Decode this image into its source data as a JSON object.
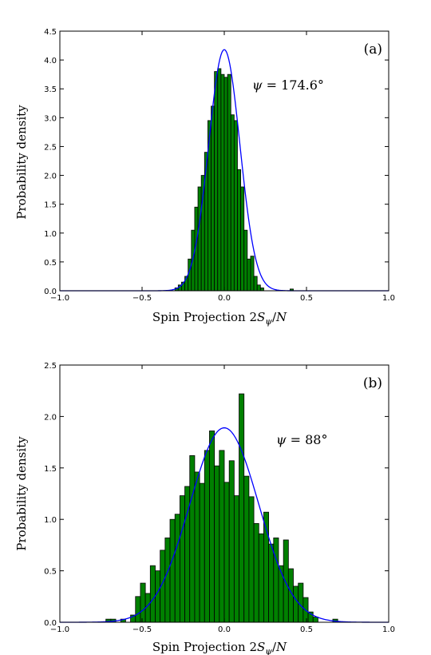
{
  "chart_data": [
    {
      "type": "bar",
      "panel_label": "(a)",
      "annotation": "ψ = 174.6°",
      "xlabel": "Spin Projection 2S_ψ/N",
      "ylabel": "Probability density",
      "xlim": [
        -1.0,
        1.0
      ],
      "ylim": [
        0,
        4.5
      ],
      "xticks": [
        "−1.0",
        "−0.5",
        "0.0",
        "0.5",
        "1.0"
      ],
      "yticks": [
        "0.0",
        "0.5",
        "1.0",
        "1.5",
        "2.0",
        "2.5",
        "3.0",
        "3.5",
        "4.0",
        "4.5"
      ],
      "bin_width": 0.02,
      "bins": [
        {
          "x0": -0.3,
          "h": 0.05
        },
        {
          "x0": -0.28,
          "h": 0.1
        },
        {
          "x0": -0.26,
          "h": 0.15
        },
        {
          "x0": -0.24,
          "h": 0.25
        },
        {
          "x0": -0.22,
          "h": 0.55
        },
        {
          "x0": -0.2,
          "h": 1.05
        },
        {
          "x0": -0.18,
          "h": 1.45
        },
        {
          "x0": -0.16,
          "h": 1.8
        },
        {
          "x0": -0.14,
          "h": 2.0
        },
        {
          "x0": -0.12,
          "h": 2.4
        },
        {
          "x0": -0.1,
          "h": 2.95
        },
        {
          "x0": -0.08,
          "h": 3.2
        },
        {
          "x0": -0.06,
          "h": 3.8
        },
        {
          "x0": -0.04,
          "h": 3.85
        },
        {
          "x0": -0.02,
          "h": 3.75
        },
        {
          "x0": 0.0,
          "h": 3.7
        },
        {
          "x0": 0.02,
          "h": 3.75
        },
        {
          "x0": 0.04,
          "h": 3.05
        },
        {
          "x0": 0.06,
          "h": 2.95
        },
        {
          "x0": 0.08,
          "h": 2.1
        },
        {
          "x0": 0.1,
          "h": 1.8
        },
        {
          "x0": 0.12,
          "h": 1.05
        },
        {
          "x0": 0.14,
          "h": 0.55
        },
        {
          "x0": 0.16,
          "h": 0.6
        },
        {
          "x0": 0.18,
          "h": 0.25
        },
        {
          "x0": 0.2,
          "h": 0.1
        },
        {
          "x0": 0.22,
          "h": 0.05
        },
        {
          "x0": 0.4,
          "h": 0.03
        }
      ],
      "fit": {
        "type": "gaussian",
        "mean": 0.0,
        "sigma": 0.095,
        "peak": 4.18
      },
      "bar_color": "#008000",
      "fit_color": "#0000ff",
      "grid": false
    },
    {
      "type": "bar",
      "panel_label": "(b)",
      "annotation": "ψ = 88°",
      "xlabel": "Spin Projection 2S_ψ/N",
      "ylabel": "Probability density",
      "xlim": [
        -1.0,
        1.0
      ],
      "ylim": [
        0,
        2.5
      ],
      "xticks": [
        "−1.0",
        "−0.5",
        "0.0",
        "0.5",
        "1.0"
      ],
      "yticks": [
        "0.0",
        "0.5",
        "1.0",
        "1.5",
        "2.0",
        "2.5"
      ],
      "bin_width": 0.03,
      "bins": [
        {
          "x0": -0.72,
          "h": 0.03
        },
        {
          "x0": -0.69,
          "h": 0.03
        },
        {
          "x0": -0.63,
          "h": 0.03
        },
        {
          "x0": -0.57,
          "h": 0.07
        },
        {
          "x0": -0.54,
          "h": 0.25
        },
        {
          "x0": -0.51,
          "h": 0.38
        },
        {
          "x0": -0.48,
          "h": 0.28
        },
        {
          "x0": -0.45,
          "h": 0.55
        },
        {
          "x0": -0.42,
          "h": 0.5
        },
        {
          "x0": -0.39,
          "h": 0.7
        },
        {
          "x0": -0.36,
          "h": 0.82
        },
        {
          "x0": -0.33,
          "h": 1.0
        },
        {
          "x0": -0.3,
          "h": 1.05
        },
        {
          "x0": -0.27,
          "h": 1.23
        },
        {
          "x0": -0.24,
          "h": 1.32
        },
        {
          "x0": -0.21,
          "h": 1.62
        },
        {
          "x0": -0.18,
          "h": 1.46
        },
        {
          "x0": -0.15,
          "h": 1.35
        },
        {
          "x0": -0.12,
          "h": 1.67
        },
        {
          "x0": -0.09,
          "h": 1.86
        },
        {
          "x0": -0.06,
          "h": 1.52
        },
        {
          "x0": -0.03,
          "h": 1.67
        },
        {
          "x0": 0.0,
          "h": 1.36
        },
        {
          "x0": 0.03,
          "h": 1.57
        },
        {
          "x0": 0.06,
          "h": 1.23
        },
        {
          "x0": 0.09,
          "h": 2.22
        },
        {
          "x0": 0.12,
          "h": 1.42
        },
        {
          "x0": 0.15,
          "h": 1.22
        },
        {
          "x0": 0.18,
          "h": 0.96
        },
        {
          "x0": 0.21,
          "h": 0.86
        },
        {
          "x0": 0.24,
          "h": 1.07
        },
        {
          "x0": 0.27,
          "h": 0.76
        },
        {
          "x0": 0.3,
          "h": 0.82
        },
        {
          "x0": 0.33,
          "h": 0.55
        },
        {
          "x0": 0.36,
          "h": 0.8
        },
        {
          "x0": 0.39,
          "h": 0.52
        },
        {
          "x0": 0.42,
          "h": 0.35
        },
        {
          "x0": 0.45,
          "h": 0.38
        },
        {
          "x0": 0.48,
          "h": 0.24
        },
        {
          "x0": 0.51,
          "h": 0.1
        },
        {
          "x0": 0.54,
          "h": 0.05
        },
        {
          "x0": 0.66,
          "h": 0.03
        }
      ],
      "fit": {
        "type": "gaussian",
        "mean": 0.0,
        "sigma": 0.21,
        "peak": 1.89
      },
      "bar_color": "#008000",
      "fit_color": "#0000ff",
      "grid": false
    }
  ]
}
